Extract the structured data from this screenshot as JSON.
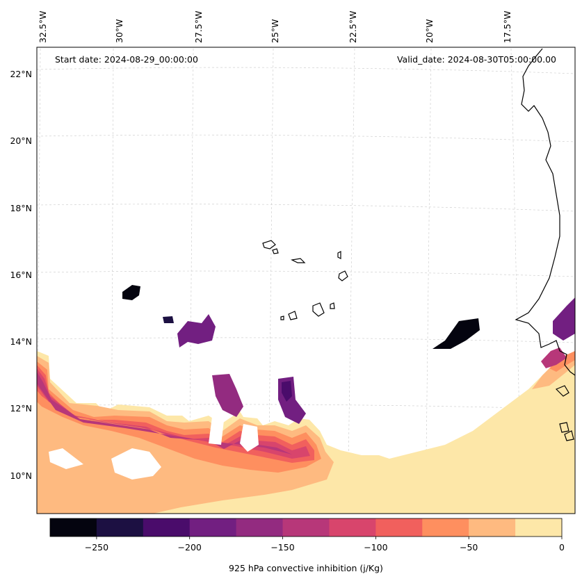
{
  "map": {
    "start_date_label": "Start date: 2024-08-29_00:00:00",
    "valid_date_label": "Valid_date: 2024-08-30T05:00:00.00",
    "lon_ticks": [
      "32.5°W",
      "30°W",
      "27.5°W",
      "25°W",
      "22.5°W",
      "20°W",
      "17.5°W"
    ],
    "lat_ticks": [
      "22°N",
      "20°N",
      "18°N",
      "16°N",
      "14°N",
      "12°N",
      "10°N"
    ],
    "colors": {
      "land_outline": "#000000",
      "gridline": "#cccccc"
    }
  },
  "colorbar": {
    "label": "925 hPa convective inhibition (j/Kg)",
    "tick_labels": [
      "−250",
      "−200",
      "−150",
      "−100",
      "−50",
      "0"
    ],
    "colors": [
      "#04040f",
      "#1c1042",
      "#4a0c6b",
      "#721f81",
      "#932b80",
      "#b73779",
      "#d8456c",
      "#f1605d",
      "#fe8f5f",
      "#feba80",
      "#fde7a8"
    ]
  }
}
